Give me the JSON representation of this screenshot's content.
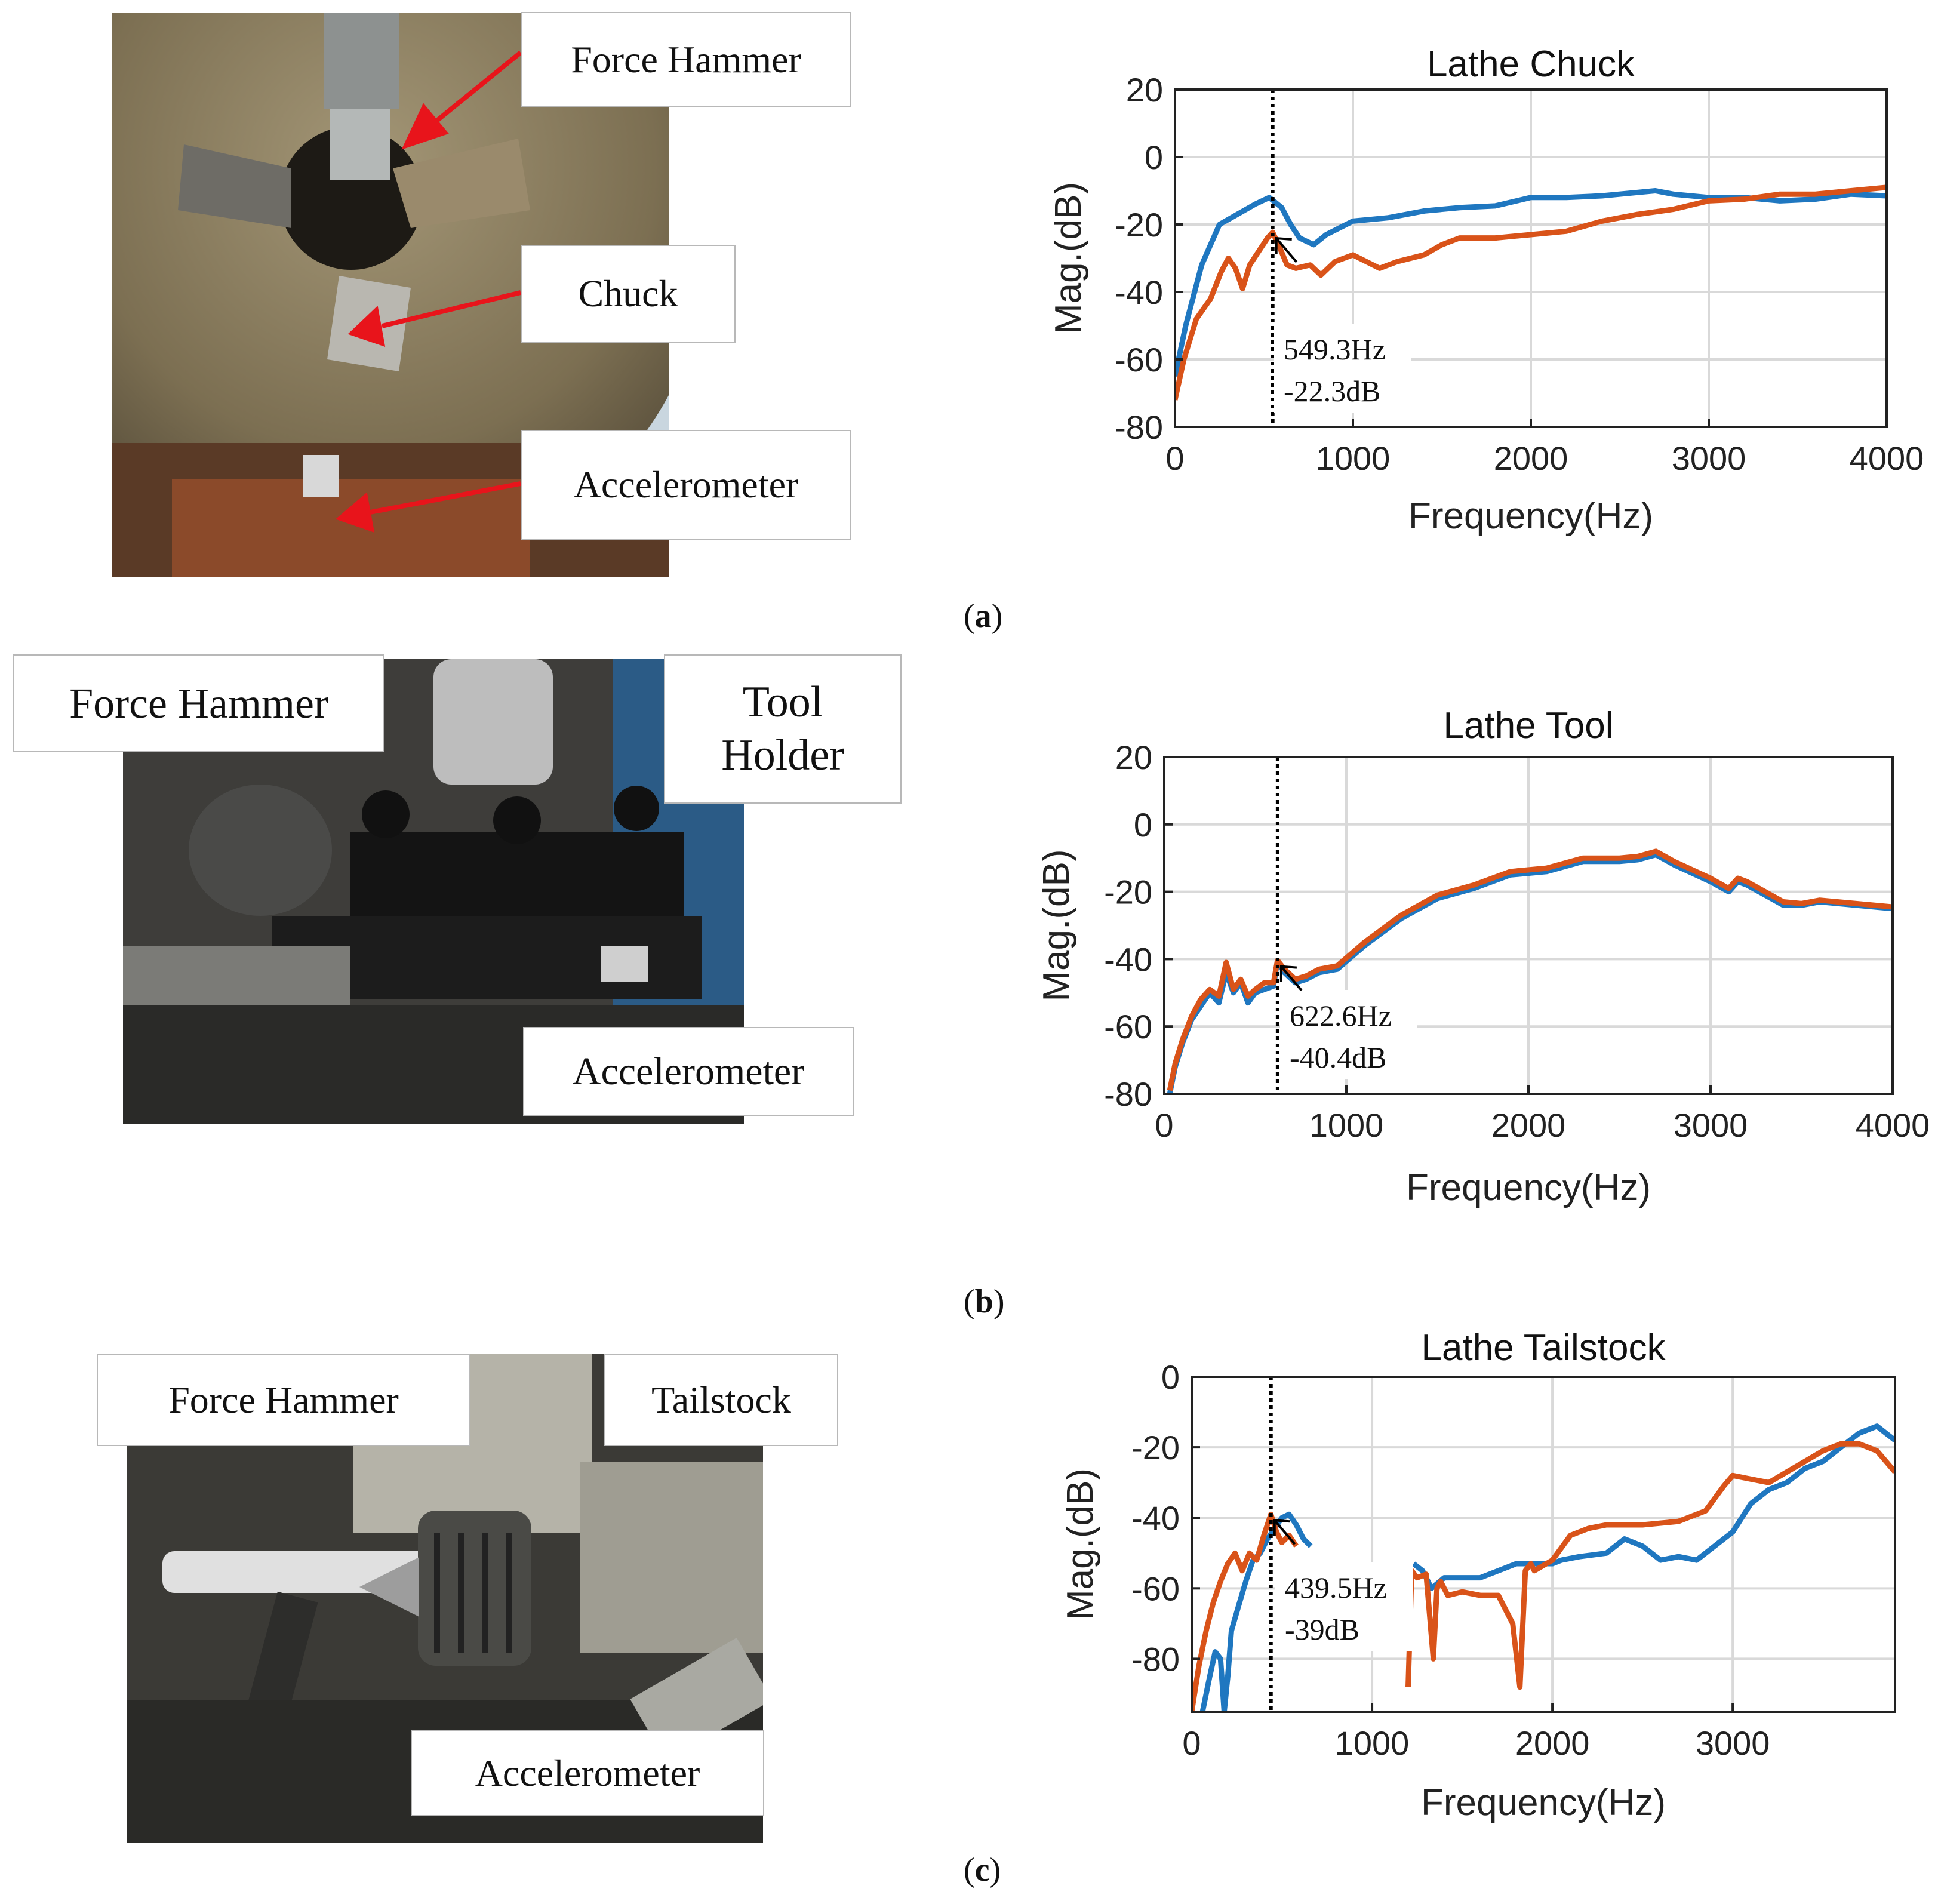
{
  "panels": [
    {
      "caption": "(a)",
      "caption_letter": "a",
      "photo_labels": {
        "force_hammer": "Force Hammer",
        "chuck": "Chuck",
        "accelerometer": "Accelerometer"
      }
    },
    {
      "caption": "(b)",
      "caption_letter": "b",
      "photo_labels": {
        "force_hammer": "Force Hammer",
        "tool_holder_1": "Tool",
        "tool_holder_2": "Holder",
        "accelerometer": "Accelerometer"
      }
    },
    {
      "caption": "(c)",
      "caption_letter": "c",
      "photo_labels": {
        "force_hammer": "Force Hammer",
        "tailstock": "Tailstock",
        "accelerometer": "Accelerometer"
      }
    }
  ],
  "colors": {
    "blue": "#1f77c0",
    "orange": "#d95319",
    "grid": "#d9d9d9",
    "arrow": "#e8141b"
  },
  "chart_data": [
    {
      "type": "line",
      "title": "Lathe Chuck",
      "xlabel": "Frequency(Hz)",
      "ylabel": "Mag.(dB)",
      "xlim": [
        0,
        4000
      ],
      "ylim": [
        -80,
        20
      ],
      "xticks": [
        0,
        1000,
        2000,
        3000,
        4000
      ],
      "yticks": [
        -80,
        -60,
        -40,
        -20,
        0,
        20
      ],
      "grid": true,
      "marker": {
        "x": 549.3,
        "y": -22.3,
        "label_freq": "549.3Hz",
        "label_mag": "-22.3dB"
      },
      "series": [
        {
          "name": "blue",
          "x": [
            0,
            60,
            150,
            250,
            350,
            450,
            530,
            600,
            650,
            700,
            780,
            850,
            1000,
            1200,
            1400,
            1600,
            1800,
            2000,
            2200,
            2400,
            2600,
            2700,
            2800,
            3000,
            3200,
            3400,
            3600,
            3800,
            4000
          ],
          "y": [
            -65,
            -50,
            -32,
            -20,
            -17,
            -14,
            -12,
            -15,
            -20,
            -24,
            -26,
            -23,
            -19,
            -18,
            -16,
            -15,
            -14.5,
            -12,
            -12,
            -11.5,
            -10.5,
            -10,
            -11,
            -12,
            -12,
            -13,
            -12.5,
            -11,
            -11.5
          ]
        },
        {
          "name": "orange",
          "x": [
            0,
            50,
            120,
            200,
            260,
            300,
            340,
            380,
            420,
            470,
            520,
            549,
            590,
            630,
            680,
            760,
            820,
            900,
            1000,
            1150,
            1250,
            1400,
            1500,
            1600,
            1800,
            2000,
            2200,
            2400,
            2600,
            2800,
            3000,
            3200,
            3400,
            3600,
            3800,
            4000
          ],
          "y": [
            -72,
            -60,
            -48,
            -42,
            -34,
            -30,
            -33,
            -39,
            -32,
            -28,
            -24,
            -22.3,
            -27,
            -32,
            -33,
            -32,
            -35,
            -31,
            -29,
            -33,
            -31,
            -29,
            -26,
            -24,
            -24,
            -23,
            -22,
            -19,
            -17,
            -15.5,
            -13,
            -12.5,
            -11,
            -11,
            -10,
            -9
          ]
        }
      ]
    },
    {
      "type": "line",
      "title": "Lathe Tool",
      "xlabel": "Frequency(Hz)",
      "ylabel": "Mag.(dB)",
      "xlim": [
        0,
        4000
      ],
      "ylim": [
        -80,
        20
      ],
      "xticks": [
        0,
        1000,
        2000,
        3000,
        4000
      ],
      "yticks": [
        -80,
        -60,
        -40,
        -20,
        0,
        20
      ],
      "grid": true,
      "marker": {
        "x": 622.6,
        "y": -40.4,
        "label_freq": "622.6Hz",
        "label_mag": "-40.4dB"
      },
      "series": [
        {
          "name": "blue",
          "x": [
            30,
            60,
            100,
            150,
            200,
            250,
            300,
            340,
            380,
            420,
            460,
            500,
            550,
            600,
            622,
            660,
            720,
            780,
            850,
            950,
            1100,
            1300,
            1500,
            1700,
            1900,
            2100,
            2300,
            2500,
            2600,
            2700,
            2800,
            3000,
            3100,
            3150,
            3200,
            3300,
            3400,
            3500,
            3600,
            3800,
            4000
          ],
          "y": [
            -80,
            -72,
            -65,
            -58,
            -54,
            -50,
            -53,
            -44,
            -50,
            -47,
            -53,
            -50,
            -49,
            -48,
            -40.4,
            -44,
            -47,
            -46,
            -44,
            -43,
            -36,
            -28,
            -22,
            -19,
            -15,
            -14,
            -11,
            -11,
            -10.5,
            -9,
            -12,
            -17,
            -20,
            -17,
            -18,
            -21,
            -24,
            -24,
            -23,
            -24,
            -25
          ]
        },
        {
          "name": "orange",
          "x": [
            30,
            60,
            100,
            150,
            200,
            250,
            300,
            340,
            380,
            420,
            460,
            500,
            550,
            600,
            622,
            660,
            720,
            780,
            850,
            950,
            1100,
            1300,
            1500,
            1700,
            1900,
            2100,
            2300,
            2500,
            2600,
            2700,
            2800,
            3000,
            3100,
            3150,
            3200,
            3300,
            3400,
            3500,
            3600,
            3800,
            4000
          ],
          "y": [
            -79,
            -71,
            -64,
            -57,
            -52,
            -49,
            -51,
            -41,
            -49,
            -46,
            -51,
            -49,
            -47,
            -47,
            -40.4,
            -43,
            -46,
            -45,
            -43,
            -42,
            -35,
            -27,
            -21,
            -18,
            -14,
            -13,
            -10,
            -10,
            -9.5,
            -8,
            -11,
            -16,
            -19,
            -16,
            -17,
            -20,
            -23,
            -23.5,
            -22.5,
            -23.5,
            -24.5
          ]
        }
      ]
    },
    {
      "type": "line",
      "title": "Lathe Tailstock",
      "xlabel": "Frequency(Hz)",
      "ylabel": "Mag.(dB)",
      "xlim": [
        0,
        3900
      ],
      "ylim": [
        -95,
        0
      ],
      "xticks": [
        0,
        1000,
        2000,
        3000
      ],
      "yticks": [
        -80,
        -60,
        -40,
        -20,
        0
      ],
      "grid": true,
      "marker": {
        "x": 439.5,
        "y": -39,
        "label_freq": "439.5Hz",
        "label_mag": "-39dB"
      },
      "series": [
        {
          "name": "blue",
          "x": [
            60,
            100,
            130,
            160,
            180,
            200,
            220,
            260,
            300,
            340,
            380,
            420,
            460,
            500,
            540,
            580,
            620,
            660
          ],
          "y": [
            -95,
            -85,
            -78,
            -80,
            -95,
            -85,
            -72,
            -65,
            -58,
            -52,
            -50,
            -46,
            -43,
            -40,
            -39,
            -42,
            -46,
            -48
          ]
        },
        {
          "name": "blue",
          "x": [
            1230,
            1280,
            1330,
            1400,
            1500,
            1600,
            1700,
            1800,
            1900,
            2000,
            2050,
            2150,
            2300,
            2400,
            2500,
            2600,
            2700,
            2800,
            2950,
            3000,
            3100,
            3200,
            3300,
            3400,
            3500,
            3600,
            3700,
            3800,
            3900
          ],
          "y": [
            -53,
            -55,
            -60,
            -57,
            -57,
            -57,
            -55,
            -53,
            -53,
            -53,
            -52,
            -51,
            -50,
            -46,
            -48,
            -52,
            -51,
            -52,
            -46,
            -44,
            -36,
            -32,
            -30,
            -26,
            -24,
            -20,
            -16,
            -14,
            -18
          ]
        },
        {
          "name": "orange",
          "x": [
            0,
            40,
            80,
            120,
            160,
            200,
            240,
            280,
            320,
            360,
            400,
            439,
            470,
            500,
            540,
            580
          ],
          "y": [
            -95,
            -82,
            -72,
            -64,
            -58,
            -53,
            -50,
            -55,
            -50,
            -52,
            -45,
            -39,
            -44,
            -47,
            -45,
            -48
          ]
        },
        {
          "name": "orange",
          "x": [
            1200,
            1220,
            1250,
            1300,
            1340,
            1360,
            1380,
            1420,
            1500,
            1600,
            1700,
            1780,
            1820,
            1850,
            1880,
            1900,
            2000,
            2100,
            2200,
            2300,
            2500,
            2700,
            2850,
            2950,
            3000,
            3100,
            3200,
            3300,
            3400,
            3500,
            3600,
            3700,
            3800,
            3900
          ],
          "y": [
            -88,
            -55,
            -57,
            -56,
            -80,
            -60,
            -58,
            -62,
            -61,
            -62,
            -62,
            -70,
            -88,
            -55,
            -53,
            -55,
            -52,
            -45,
            -43,
            -42,
            -42,
            -41,
            -38,
            -31,
            -28,
            -29,
            -30,
            -27,
            -24,
            -21,
            -19,
            -19,
            -21,
            -27
          ]
        }
      ]
    }
  ]
}
